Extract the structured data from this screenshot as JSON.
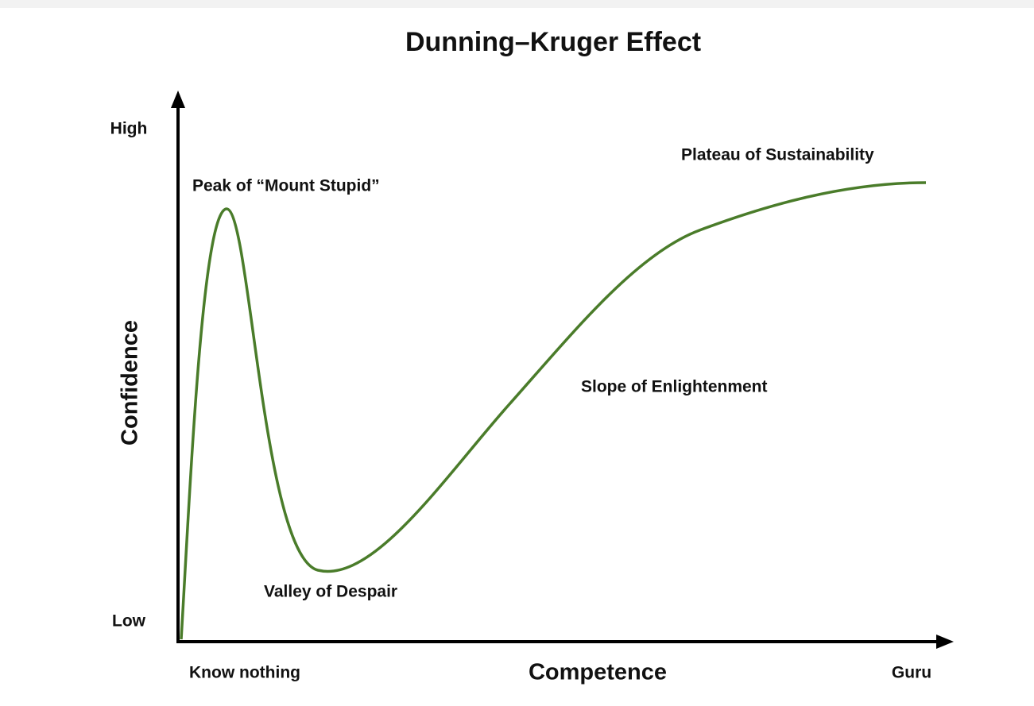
{
  "title": "Dunning–Kruger Effect",
  "y_axis": {
    "label": "Confidence",
    "high": "High",
    "low": "Low"
  },
  "x_axis": {
    "label": "Competence",
    "start": "Know nothing",
    "end": "Guru"
  },
  "annotations": [
    "Peak of “Mount Stupid”",
    "Valley of Despair",
    "Slope of Enlightenment",
    "Plateau of Sustainability"
  ]
}
